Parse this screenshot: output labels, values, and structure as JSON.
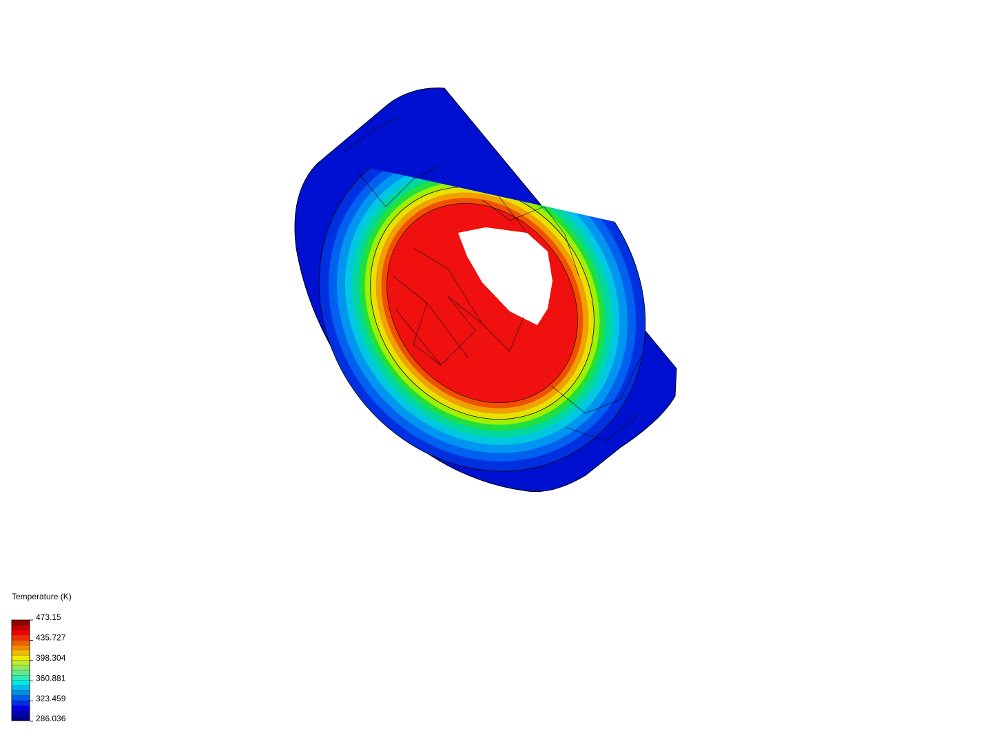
{
  "legend": {
    "title": "Temperature (K)",
    "ticks": [
      473.15,
      435.727,
      398.304,
      360.881,
      323.459,
      286.036
    ]
  }
}
